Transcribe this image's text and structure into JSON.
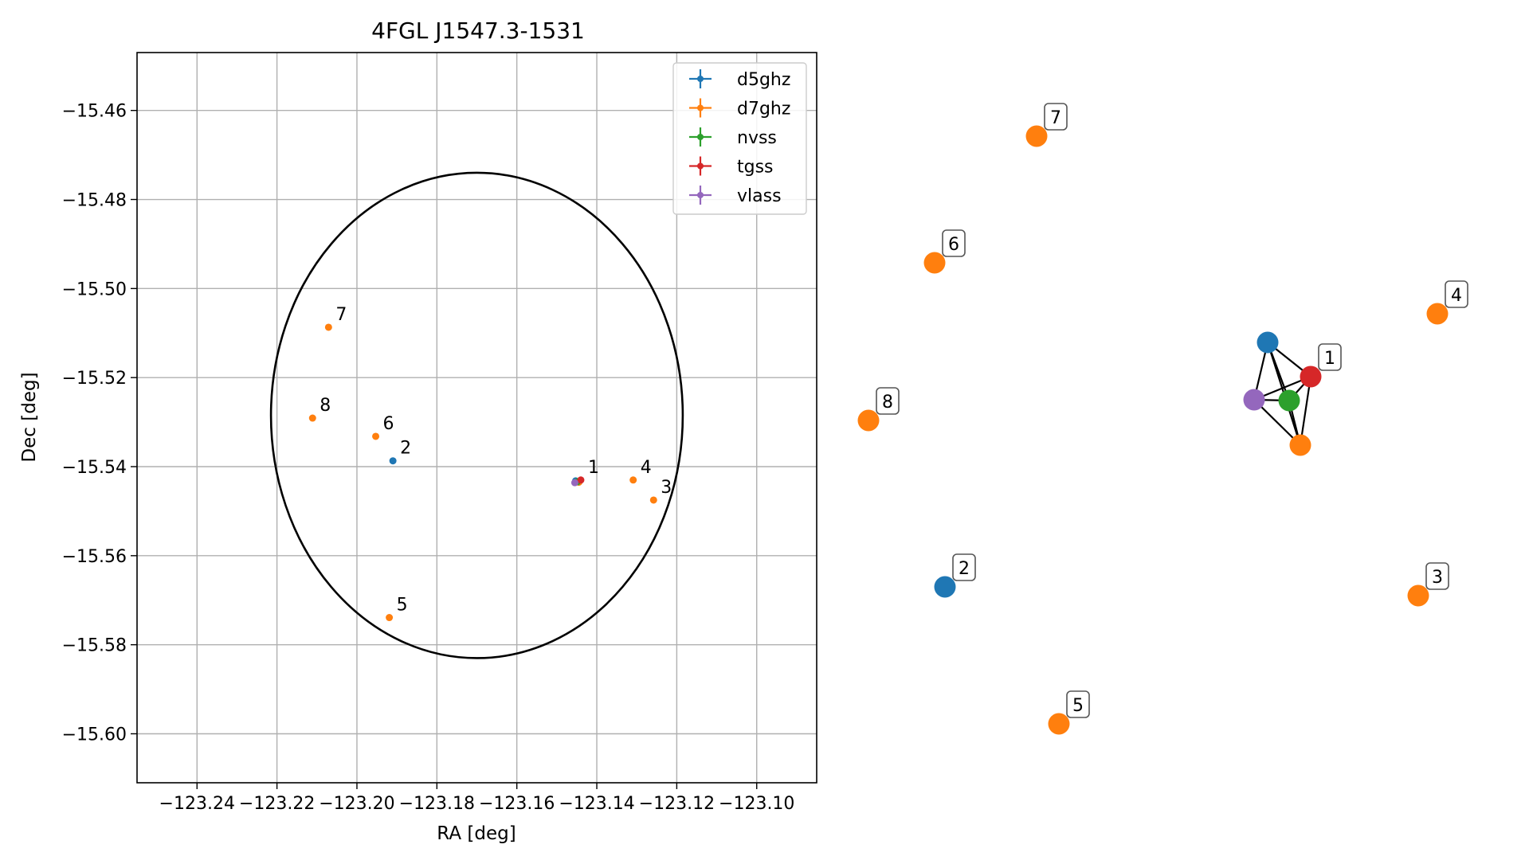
{
  "chart_data": [
    {
      "type": "scatter",
      "title": "4FGL J1547.3-1531",
      "xlabel": "RA [deg]",
      "ylabel": "Dec [deg]",
      "xlim": [
        -123.255,
        -123.085
      ],
      "ylim": [
        -15.611,
        -15.447
      ],
      "grid": true,
      "legend_position": "top-right",
      "xticks": [
        -123.24,
        -123.22,
        -123.2,
        -123.18,
        -123.16,
        -123.14,
        -123.12,
        -123.1
      ],
      "xtick_labels": [
        "−123.24",
        "−123.22",
        "−123.20",
        "−123.18",
        "−123.16",
        "−123.14",
        "−123.12",
        "−123.10"
      ],
      "yticks": [
        -15.46,
        -15.48,
        -15.5,
        -15.52,
        -15.54,
        -15.56,
        -15.58,
        -15.6
      ],
      "ytick_labels": [
        "−15.46",
        "−15.48",
        "−15.50",
        "−15.52",
        "−15.54",
        "−15.56",
        "−15.58",
        "−15.60"
      ],
      "ellipse": {
        "center": [
          -123.17,
          -15.5285
        ],
        "ra_radius": 0.0515,
        "dec_radius": 0.0545
      },
      "series": [
        {
          "name": "d5ghz",
          "color": "#1f77b4",
          "points": [
            {
              "x": -123.191,
              "y": -15.5387,
              "label": "2"
            },
            {
              "x": -123.1453,
              "y": -15.5432,
              "label": ""
            }
          ]
        },
        {
          "name": "d7ghz",
          "color": "#ff7f0e",
          "points": [
            {
              "x": -123.1445,
              "y": -15.5435,
              "label": ""
            },
            {
              "x": -123.1309,
              "y": -15.543,
              "label": "4"
            },
            {
              "x": -123.1258,
              "y": -15.5475,
              "label": "3"
            },
            {
              "x": -123.1919,
              "y": -15.5739,
              "label": "5"
            },
            {
              "x": -123.1953,
              "y": -15.5332,
              "label": "6"
            },
            {
              "x": -123.2071,
              "y": -15.5087,
              "label": "7"
            },
            {
              "x": -123.2111,
              "y": -15.5291,
              "label": "8"
            }
          ]
        },
        {
          "name": "nvss",
          "color": "#2ca02c",
          "points": [
            {
              "x": -123.1449,
              "y": -15.5434,
              "label": ""
            }
          ]
        },
        {
          "name": "tgss",
          "color": "#d62728",
          "points": [
            {
              "x": -123.144,
              "y": -15.543,
              "label": "1"
            }
          ]
        },
        {
          "name": "vlass",
          "color": "#9467bd",
          "points": [
            {
              "x": -123.1455,
              "y": -15.5436,
              "label": ""
            }
          ]
        }
      ]
    },
    {
      "type": "network",
      "nodes": [
        {
          "id": "n1",
          "label": "1",
          "color": "#d62728"
        },
        {
          "id": "n_d5b",
          "label": "",
          "color": "#1f77b4"
        },
        {
          "id": "n_nvss",
          "label": "",
          "color": "#2ca02c"
        },
        {
          "id": "n_vlass",
          "label": "",
          "color": "#9467bd"
        },
        {
          "id": "n_d7b",
          "label": "",
          "color": "#ff7f0e"
        },
        {
          "id": "n2",
          "label": "2",
          "color": "#1f77b4"
        },
        {
          "id": "n3",
          "label": "3",
          "color": "#ff7f0e"
        },
        {
          "id": "n4",
          "label": "4",
          "color": "#ff7f0e"
        },
        {
          "id": "n5",
          "label": "5",
          "color": "#ff7f0e"
        },
        {
          "id": "n6",
          "label": "6",
          "color": "#ff7f0e"
        },
        {
          "id": "n7",
          "label": "7",
          "color": "#ff7f0e"
        },
        {
          "id": "n8",
          "label": "8",
          "color": "#ff7f0e"
        }
      ],
      "edges": [
        [
          "n_d5b",
          "n1"
        ],
        [
          "n_d5b",
          "n_nvss"
        ],
        [
          "n_d5b",
          "n_vlass"
        ],
        [
          "n_d5b",
          "n_d7b"
        ],
        [
          "n_vlass",
          "n1"
        ],
        [
          "n_vlass",
          "n_nvss"
        ],
        [
          "n_vlass",
          "n_d7b"
        ],
        [
          "n_nvss",
          "n1"
        ],
        [
          "n_nvss",
          "n_d7b"
        ],
        [
          "n1",
          "n_d7b"
        ]
      ]
    }
  ]
}
